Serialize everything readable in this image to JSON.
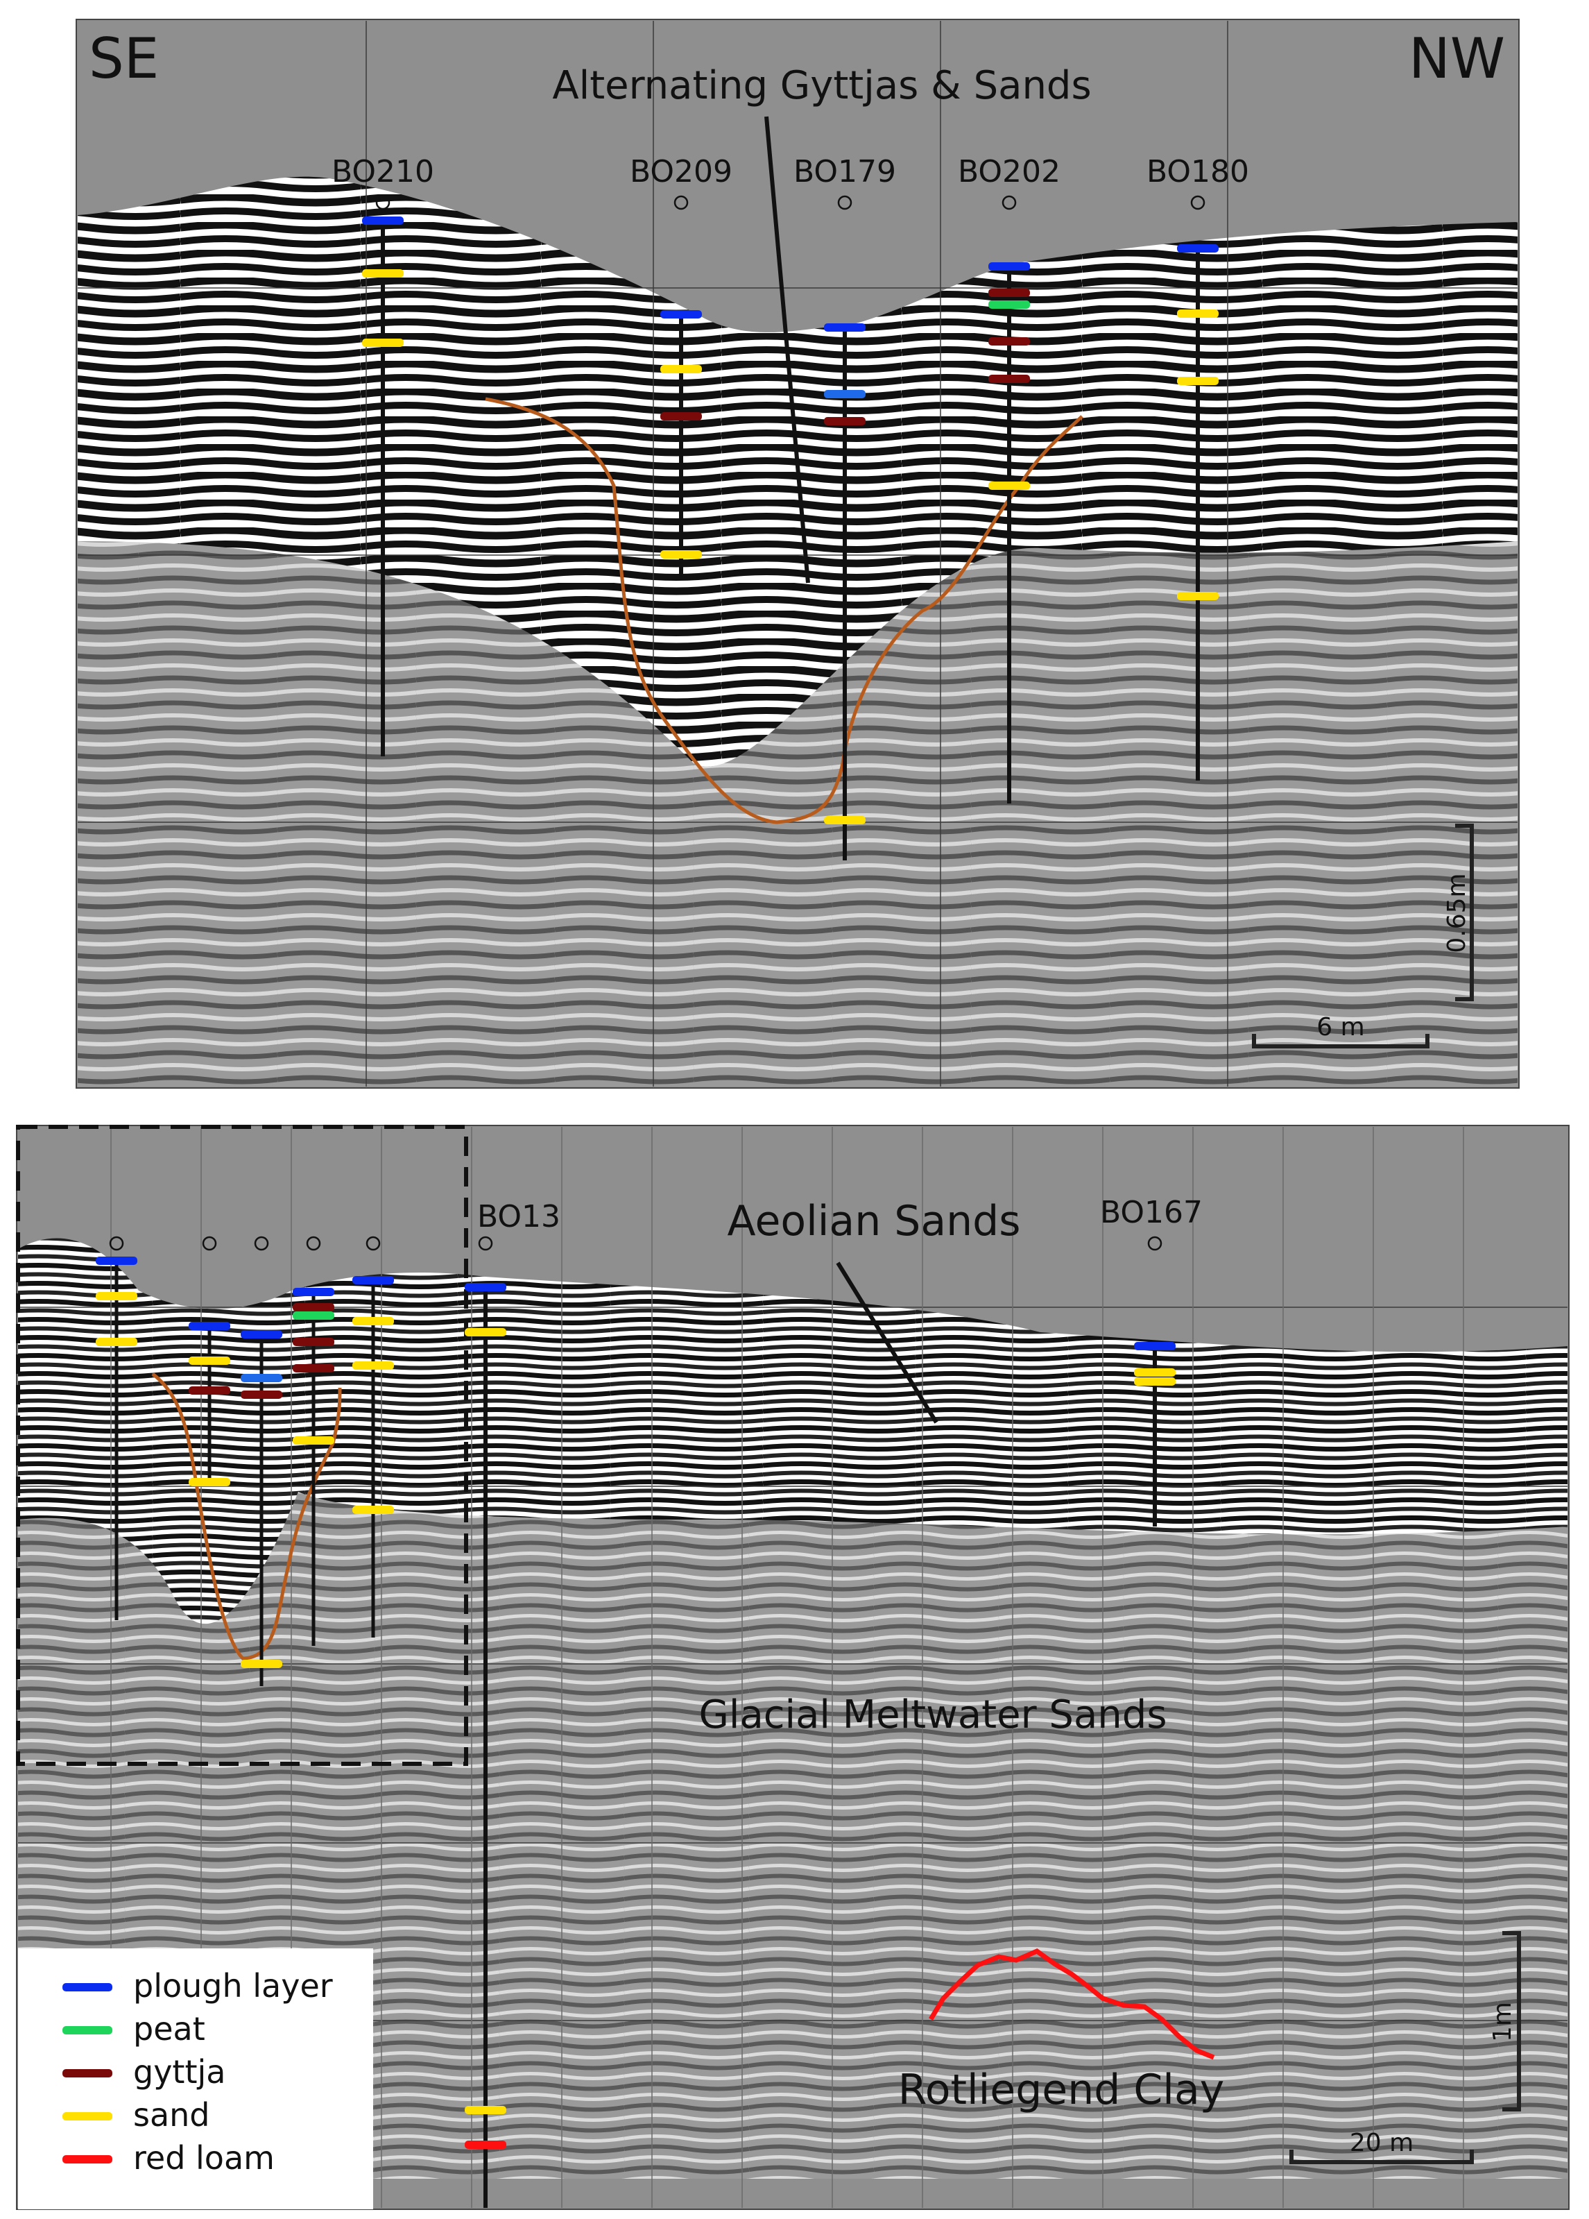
{
  "top_panel": {
    "direction_left": "SE",
    "direction_right": "NW",
    "title": "Alternating Gyttjas & Sands",
    "vertical_scale": "0.65m",
    "horizontal_scale": "6 m",
    "boreholes": [
      {
        "name": "BO210",
        "layers": [
          "plough layer",
          "sand",
          "sand"
        ]
      },
      {
        "name": "BO209",
        "layers": [
          "plough layer",
          "sand",
          "gyttja",
          "sand"
        ]
      },
      {
        "name": "BO179",
        "layers": [
          "plough layer",
          "plough layer",
          "gyttja",
          "sand"
        ]
      },
      {
        "name": "BO202",
        "layers": [
          "plough layer",
          "gyttja",
          "peat",
          "gyttja",
          "gyttja",
          "sand"
        ]
      },
      {
        "name": "BO180",
        "layers": [
          "plough layer",
          "sand",
          "sand",
          "sand"
        ]
      }
    ]
  },
  "bottom_panel": {
    "unit_aeolian": "Aeolian Sands",
    "unit_meltwater": "Glacial Meltwater Sands",
    "unit_clay": "Rotliegend Clay",
    "vertical_scale": "1m",
    "horizontal_scale": "20 m",
    "boreholes": [
      {
        "name": "BO13"
      },
      {
        "name": "BO167"
      }
    ]
  },
  "legend": [
    {
      "label": "plough layer",
      "color": "#0a2cf0"
    },
    {
      "label": "peat",
      "color": "#1fd45a"
    },
    {
      "label": "gyttja",
      "color": "#7a0a0a"
    },
    {
      "label": "sand",
      "color": "#ffe000"
    },
    {
      "label": "red loam",
      "color": "#ff1010"
    }
  ],
  "colors": {
    "background_panel": "#8f8f8f",
    "channel_outline": "#b85c1e",
    "clay_outline": "#ff1010"
  }
}
